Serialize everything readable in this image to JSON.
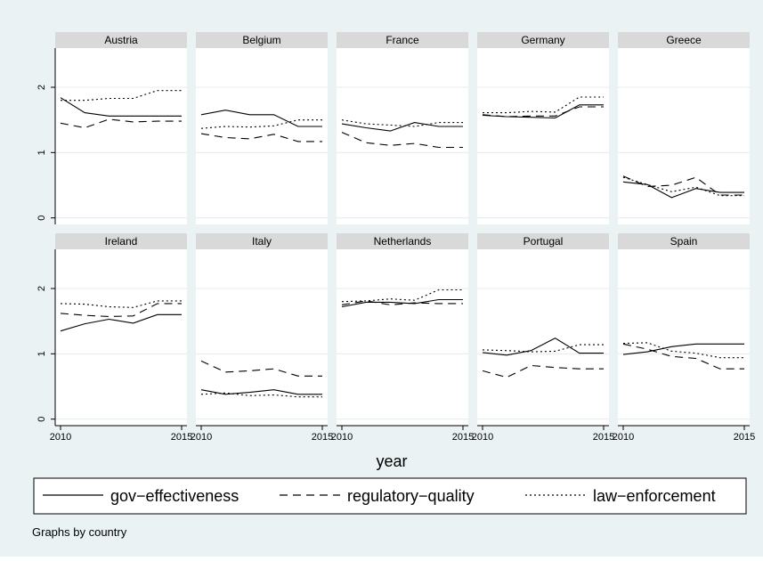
{
  "chart_data": {
    "type": "line",
    "xlabel": "year",
    "x_ticks": [
      2010,
      2015
    ],
    "y_ticks": [
      0,
      1,
      2
    ],
    "xlim": [
      2010,
      2015
    ],
    "ylim": [
      -0.1,
      2.6
    ],
    "grid": true,
    "legend_position": "bottom",
    "note": "Graphs by country",
    "years": [
      2010,
      2011,
      2012,
      2013,
      2014,
      2015
    ],
    "legend": [
      {
        "key": "gov",
        "label": "gov−effectiveness",
        "dash": "none"
      },
      {
        "key": "reg",
        "label": "regulatory−quality",
        "dash": "9,6"
      },
      {
        "key": "law",
        "label": "law−enforcement",
        "dash": "2,3"
      }
    ],
    "panels": [
      {
        "country": "Austria",
        "gov": [
          1.84,
          1.61,
          1.56,
          1.56,
          1.56,
          1.56
        ],
        "reg": [
          1.45,
          1.38,
          1.51,
          1.47,
          1.48,
          1.48
        ],
        "law": [
          1.8,
          1.8,
          1.83,
          1.83,
          1.95,
          1.95
        ]
      },
      {
        "country": "Belgium",
        "gov": [
          1.58,
          1.65,
          1.58,
          1.58,
          1.4,
          1.4
        ],
        "reg": [
          1.29,
          1.23,
          1.21,
          1.28,
          1.17,
          1.17
        ],
        "law": [
          1.37,
          1.4,
          1.39,
          1.41,
          1.5,
          1.5
        ]
      },
      {
        "country": "France",
        "gov": [
          1.44,
          1.38,
          1.33,
          1.46,
          1.4,
          1.4
        ],
        "reg": [
          1.31,
          1.15,
          1.11,
          1.14,
          1.08,
          1.08
        ],
        "law": [
          1.5,
          1.44,
          1.42,
          1.4,
          1.46,
          1.46
        ]
      },
      {
        "country": "Germany",
        "gov": [
          1.57,
          1.55,
          1.54,
          1.53,
          1.73,
          1.73
        ],
        "reg": [
          1.58,
          1.55,
          1.56,
          1.56,
          1.7,
          1.7
        ],
        "law": [
          1.61,
          1.61,
          1.63,
          1.62,
          1.85,
          1.85
        ]
      },
      {
        "country": "Greece",
        "gov": [
          0.55,
          0.51,
          0.31,
          0.45,
          0.39,
          0.39
        ],
        "reg": [
          0.64,
          0.48,
          0.5,
          0.62,
          0.35,
          0.35
        ],
        "law": [
          0.62,
          0.51,
          0.4,
          0.47,
          0.34,
          0.34
        ]
      },
      {
        "country": "Ireland",
        "gov": [
          1.35,
          1.46,
          1.53,
          1.47,
          1.6,
          1.6
        ],
        "reg": [
          1.62,
          1.59,
          1.57,
          1.58,
          1.77,
          1.77
        ],
        "law": [
          1.77,
          1.76,
          1.72,
          1.71,
          1.81,
          1.81
        ]
      },
      {
        "country": "Italy",
        "gov": [
          0.45,
          0.38,
          0.41,
          0.45,
          0.38,
          0.38
        ],
        "reg": [
          0.89,
          0.72,
          0.74,
          0.77,
          0.66,
          0.66
        ],
        "law": [
          0.38,
          0.4,
          0.36,
          0.37,
          0.34,
          0.34
        ]
      },
      {
        "country": "Netherlands",
        "gov": [
          1.72,
          1.79,
          1.79,
          1.77,
          1.83,
          1.83
        ],
        "reg": [
          1.75,
          1.81,
          1.75,
          1.78,
          1.77,
          1.77
        ],
        "law": [
          1.8,
          1.81,
          1.84,
          1.82,
          1.98,
          1.98
        ]
      },
      {
        "country": "Portugal",
        "gov": [
          1.02,
          0.98,
          1.05,
          1.24,
          1.01,
          1.01
        ],
        "reg": [
          0.74,
          0.64,
          0.82,
          0.79,
          0.77,
          0.77
        ],
        "law": [
          1.06,
          1.05,
          1.03,
          1.04,
          1.14,
          1.14
        ]
      },
      {
        "country": "Spain",
        "gov": [
          0.99,
          1.03,
          1.11,
          1.15,
          1.15,
          1.15
        ],
        "reg": [
          1.15,
          1.07,
          0.96,
          0.93,
          0.77,
          0.77
        ],
        "law": [
          1.16,
          1.17,
          1.04,
          1.01,
          0.94,
          0.94
        ]
      }
    ]
  }
}
